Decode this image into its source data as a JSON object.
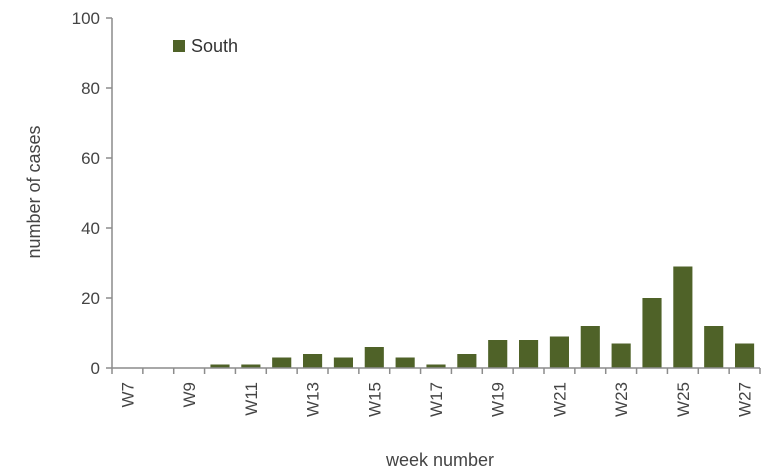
{
  "chart_data": {
    "type": "bar",
    "title": "",
    "xlabel": "week number",
    "ylabel": "number of cases",
    "ylim": [
      0,
      100
    ],
    "yticks": [
      0,
      20,
      40,
      60,
      80,
      100
    ],
    "grid": false,
    "legend": {
      "placement": "top-left",
      "entries": [
        "South"
      ]
    },
    "categories": [
      "W7",
      "W8",
      "W9",
      "W10",
      "W11",
      "W12",
      "W13",
      "W14",
      "W15",
      "W16",
      "W17",
      "W18",
      "W19",
      "W20",
      "W21",
      "W22",
      "W23",
      "W24",
      "W25",
      "W26",
      "W27"
    ],
    "tick_labels": [
      "W7",
      "",
      "W9",
      "",
      "W11",
      "",
      "W13",
      "",
      "W15",
      "",
      "W17",
      "",
      "W19",
      "",
      "W21",
      "",
      "W23",
      "",
      "W25",
      "",
      "W27"
    ],
    "series": [
      {
        "name": "South",
        "color": "#4f6228",
        "values": [
          0,
          0,
          0,
          1,
          1,
          3,
          4,
          3,
          6,
          3,
          1,
          4,
          8,
          8,
          9,
          12,
          7,
          20,
          29,
          12,
          7
        ]
      }
    ]
  }
}
